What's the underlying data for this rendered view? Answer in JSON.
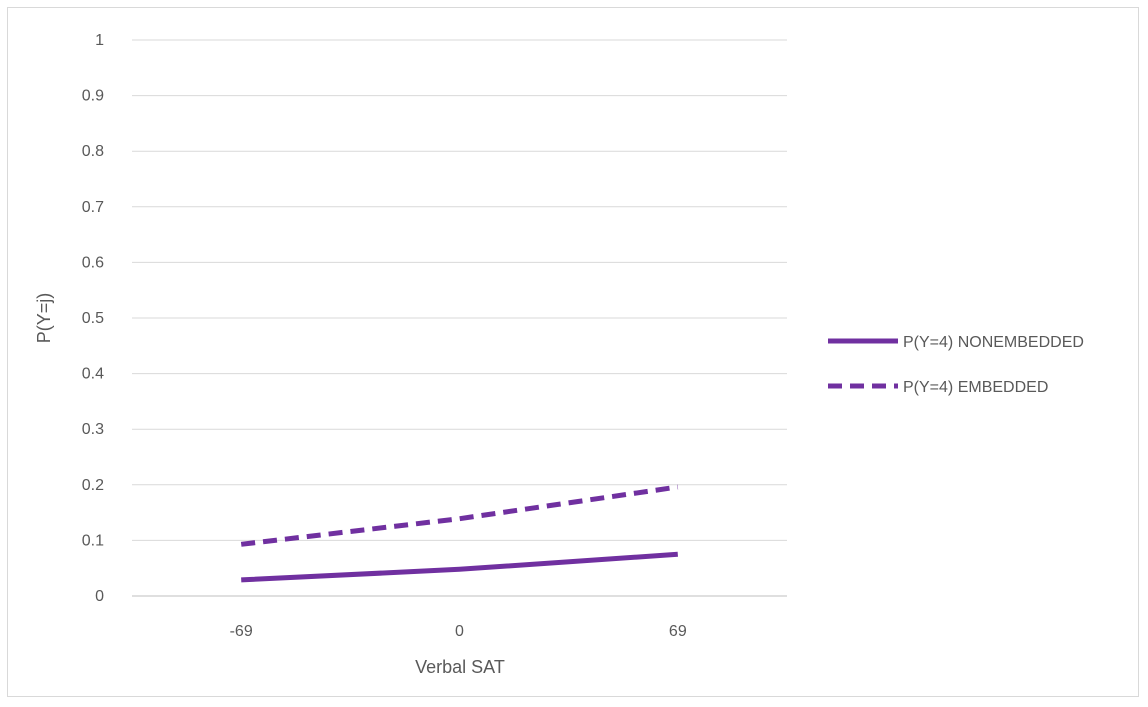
{
  "chart_data": {
    "type": "line",
    "categories": [
      "-69",
      "0",
      "69"
    ],
    "series": [
      {
        "name": "P(Y=4) NONEMBEDDED",
        "values": [
          0.029,
          0.048,
          0.075
        ],
        "style": "solid",
        "color": "#7030a0"
      },
      {
        "name": "P(Y=4) EMBEDDED",
        "values": [
          0.093,
          0.139,
          0.196
        ],
        "style": "dashed",
        "color": "#7030a0"
      }
    ],
    "xlabel": "Verbal SAT",
    "ylabel": "P(Y=j)",
    "ylim": [
      0,
      1
    ],
    "yticks": [
      "0",
      "0.1",
      "0.2",
      "0.3",
      "0.4",
      "0.5",
      "0.6",
      "0.7",
      "0.8",
      "0.9",
      "1"
    ],
    "grid": true,
    "legend_position": "right"
  }
}
